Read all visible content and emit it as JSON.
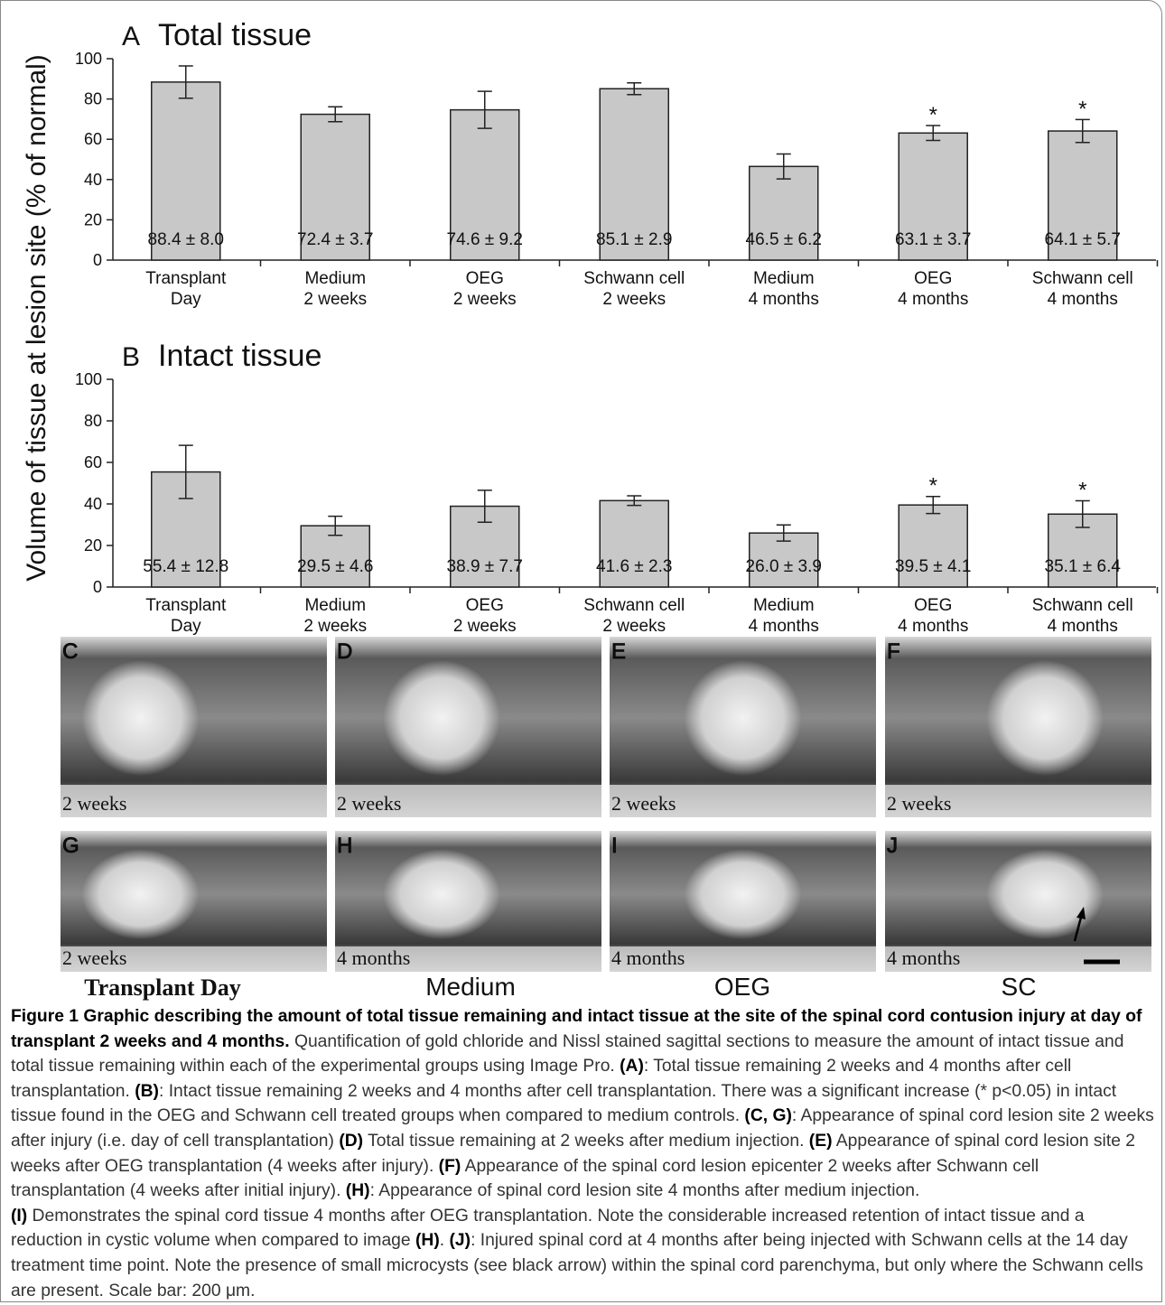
{
  "chart_data": [
    {
      "type": "bar",
      "panel": "A",
      "title": "Total tissue",
      "ylabel": "Volume of tissue at lesion site (% of normal)",
      "categories": [
        "Transplant\nDay",
        "Medium\n2 weeks",
        "OEG\n2 weeks",
        "Schwann cell\n2 weeks",
        "Medium\n4 months",
        "OEG\n4 months",
        "Schwann cell\n4 months"
      ],
      "values": [
        88.4,
        72.4,
        74.6,
        85.1,
        46.5,
        63.1,
        64.1
      ],
      "errors": [
        8.0,
        3.7,
        9.2,
        2.9,
        6.2,
        3.7,
        5.7
      ],
      "value_labels": [
        "88.4 ± 8.0",
        "72.4 ± 3.7",
        "74.6 ± 9.2",
        "85.1 ± 2.9",
        "46.5 ± 6.2",
        "63.1 ± 3.7",
        "64.1 ± 5.7"
      ],
      "significance": [
        null,
        null,
        null,
        null,
        null,
        "*",
        "*"
      ],
      "color": "#c8c8c8",
      "ylim": [
        0,
        100
      ],
      "yticks": [
        0,
        20,
        40,
        60,
        80,
        100
      ]
    },
    {
      "type": "bar",
      "panel": "B",
      "title": "Intact tissue",
      "categories": [
        "Transplant\nDay",
        "Medium\n2 weeks",
        "OEG\n2 weeks",
        "Schwann cell\n2 weeks",
        "Medium\n4 months",
        "OEG\n4 months",
        "Schwann cell\n4 months"
      ],
      "values": [
        55.4,
        29.5,
        38.9,
        41.6,
        26.0,
        39.5,
        35.1
      ],
      "errors": [
        12.8,
        4.6,
        7.7,
        2.3,
        3.9,
        4.1,
        6.4
      ],
      "value_labels": [
        "55.4 ± 12.8",
        "29.5 ± 4.6",
        "38.9 ± 7.7",
        "41.6 ± 2.3",
        "26.0 ± 3.9",
        "39.5 ± 4.1",
        "35.1 ± 6.4"
      ],
      "significance": [
        null,
        null,
        null,
        null,
        null,
        "*",
        "*"
      ],
      "color": "#c8c8c8",
      "ylim": [
        0,
        100
      ],
      "yticks": [
        0,
        20,
        40,
        60,
        80,
        100
      ]
    }
  ],
  "panels": [
    {
      "letter": "C",
      "time": "2 weeks"
    },
    {
      "letter": "D",
      "time": "2 weeks"
    },
    {
      "letter": "E",
      "time": "2 weeks"
    },
    {
      "letter": "F",
      "time": "2 weeks"
    },
    {
      "letter": "G",
      "time": "2 weeks"
    },
    {
      "letter": "H",
      "time": "4 months"
    },
    {
      "letter": "I",
      "time": "4 months"
    },
    {
      "letter": "J",
      "time": "4 months"
    }
  ],
  "columns": [
    "Transplant Day",
    "Medium",
    "OEG",
    "SC"
  ],
  "caption": {
    "title": "Figure 1 Graphic describing the amount of total tissue remaining and intact tissue at the site of the spinal cord contusion injury at day of transplant 2 weeks and 4 months.",
    "body": [
      " Quantification of gold chloride and Nissl stained sagittal sections to measure the amount of intact tissue and total tissue remaining within each of the experimental groups using Image Pro. ",
      "(A)",
      ": Total tissue remaining 2 weeks and 4 months after cell transplantation. ",
      "(B)",
      ": Intact tissue remaining 2 weeks and 4 months after cell transplantation. There was a significant increase (* p<0.05) in intact tissue found in the OEG and Schwann cell treated groups when compared to medium controls. ",
      "(C, G)",
      ": Appearance of spinal cord lesion site 2 weeks after injury (i.e. day of cell transplantation) ",
      "(D)",
      " Total tissue remaining at 2 weeks after medium injection. ",
      "(E)",
      " Appearance of spinal cord lesion site 2 weeks after OEG transplantation (4 weeks after injury). ",
      "(F)",
      " Appearance of the spinal cord lesion epicenter 2 weeks after Schwann cell transplantation (4 weeks after initial injury). ",
      "(H)",
      ": Appearance of spinal cord lesion site 4 months after medium injection.",
      "(I)",
      " Demonstrates the spinal cord tissue 4 months after OEG transplantation. Note the considerable increased retention of intact tissue and a reduction in cystic volume when compared to image ",
      "(H)",
      ". ",
      "(J)",
      ": Injured spinal cord at 4 months after being injected with Schwann cells at the 14 day treatment time point. Note the presence of small microcysts (see black arrow) within the spinal cord parenchyma, but only where the Schwann cells are present. Scale bar: 200 μm."
    ]
  }
}
